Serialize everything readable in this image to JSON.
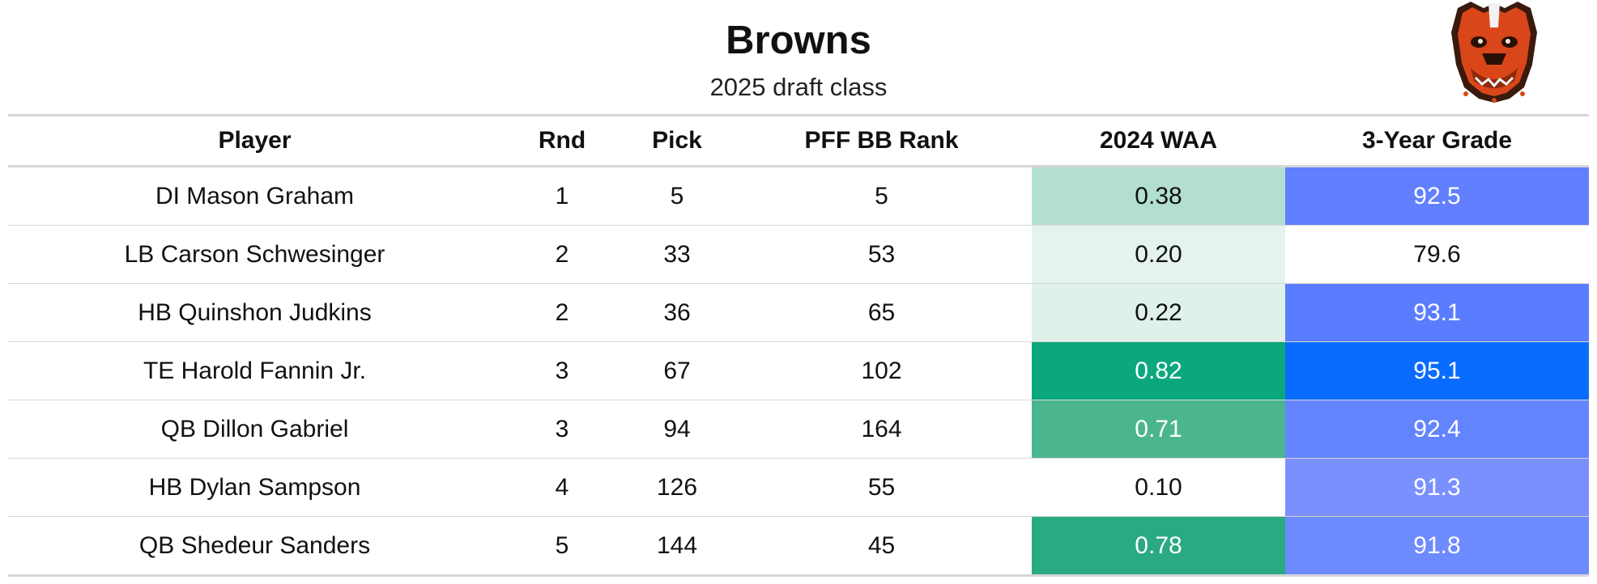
{
  "title": "Browns",
  "subtitle": "2025 draft class",
  "logo": {
    "icon": "dawg-pound-bulldog-logo"
  },
  "columns": [
    "Player",
    "Rnd",
    "Pick",
    "PFF BB Rank",
    "2024 WAA",
    "3-Year Grade"
  ],
  "rows": [
    {
      "player": "DI Mason Graham",
      "rnd": "1",
      "pick": "5",
      "pff_bb_rank": "5",
      "waa": "0.38",
      "grade": "92.5",
      "waa_color": "#b3e0ce",
      "grade_color": "#617fff",
      "waa_text": "dark",
      "grade_text": "light"
    },
    {
      "player": "LB Carson Schwesinger",
      "rnd": "2",
      "pick": "33",
      "pff_bb_rank": "53",
      "waa": "0.20",
      "grade": "79.6",
      "waa_color": "#e4f3ec",
      "grade_color": "#ffffff",
      "waa_text": "dark",
      "grade_text": "dark"
    },
    {
      "player": "HB Quinshon Judkins",
      "rnd": "2",
      "pick": "36",
      "pff_bb_rank": "65",
      "waa": "0.22",
      "grade": "93.1",
      "waa_color": "#dff1e8",
      "grade_color": "#5a7dff",
      "waa_text": "dark",
      "grade_text": "light"
    },
    {
      "player": "TE Harold Fannin Jr.",
      "rnd": "3",
      "pick": "67",
      "pff_bb_rank": "102",
      "waa": "0.82",
      "grade": "95.1",
      "waa_color": "#0aa87c",
      "grade_color": "#0a6cff",
      "waa_text": "light",
      "grade_text": "light"
    },
    {
      "player": "QB Dillon Gabriel",
      "rnd": "3",
      "pick": "94",
      "pff_bb_rank": "164",
      "waa": "0.71",
      "grade": "92.4",
      "waa_color": "#4bb68e",
      "grade_color": "#6384ff",
      "waa_text": "light",
      "grade_text": "light"
    },
    {
      "player": "HB Dylan Sampson",
      "rnd": "4",
      "pick": "126",
      "pff_bb_rank": "55",
      "waa": "0.10",
      "grade": "91.3",
      "waa_color": "#ffffff",
      "grade_color": "#7a90ff",
      "waa_text": "dark",
      "grade_text": "light"
    },
    {
      "player": "QB Shedeur Sanders",
      "rnd": "5",
      "pick": "144",
      "pff_bb_rank": "45",
      "waa": "0.78",
      "grade": "91.8",
      "waa_color": "#2aaa82",
      "grade_color": "#6d8aff",
      "waa_text": "light",
      "grade_text": "light"
    }
  ]
}
